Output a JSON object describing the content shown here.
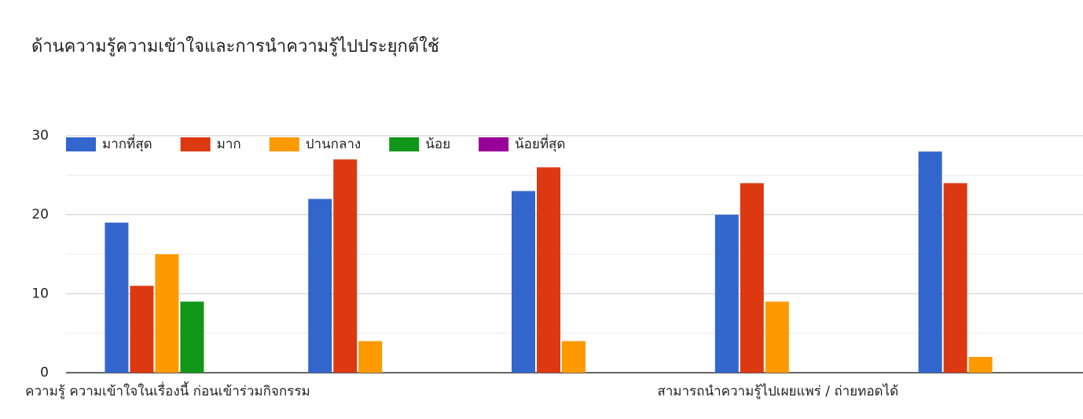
{
  "chart_data": {
    "type": "bar",
    "title": "ด้านความรู้ความเข้าใจและการนำความรู้ไปประยุกต์ใช้",
    "categories": [
      "ความรู้ ความเข้าใจในเรื่องนี้ ก่อนเข้าร่วมกิจกรรม",
      null,
      null,
      "สามารถนำความรู้ไปเผยแพร่ / ถ่ายทอดได้",
      null
    ],
    "series": [
      {
        "name": "มากที่สุด",
        "color": "#3366cc",
        "values": [
          19,
          22,
          23,
          20,
          28
        ]
      },
      {
        "name": "มาก",
        "color": "#dc3912",
        "values": [
          11,
          27,
          26,
          24,
          24
        ]
      },
      {
        "name": "ปานกลาง",
        "color": "#ff9900",
        "values": [
          15,
          4,
          4,
          9,
          2
        ]
      },
      {
        "name": "น้อย",
        "color": "#109618",
        "values": [
          9,
          0,
          0,
          0,
          0
        ]
      },
      {
        "name": "น้อยที่สุด",
        "color": "#990099",
        "values": [
          0,
          0,
          0,
          0,
          0
        ]
      }
    ],
    "ylim": [
      0,
      30
    ],
    "yticks": [
      0,
      10,
      20,
      30
    ],
    "grid": true,
    "legend": "top"
  }
}
